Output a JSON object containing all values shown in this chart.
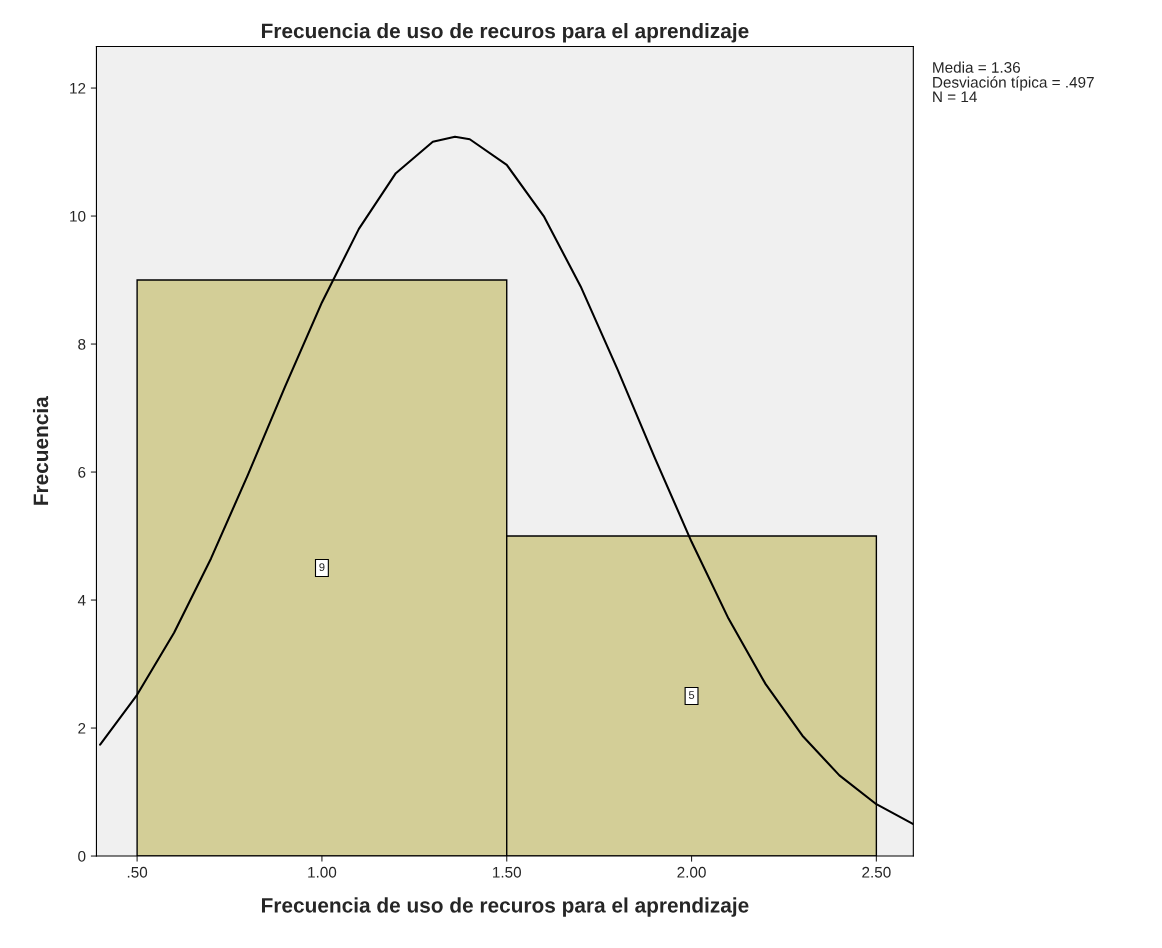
{
  "chart_data": {
    "type": "histogram",
    "title": "Frecuencia de uso de recuros para el aprendizaje",
    "xlabel": "Frecuencia de uso de recuros para el aprendizaje",
    "ylabel": "Frecuencia",
    "bins": [
      0.5,
      1.5,
      2.5
    ],
    "series": [
      {
        "color": "#d3ce97",
        "values": [
          9,
          5
        ],
        "value_labels": [
          "9",
          "5"
        ]
      },
      {
        "type": "line",
        "color": "#000000",
        "x": [
          0.4,
          0.5,
          0.6,
          0.7,
          0.8,
          0.9,
          1.0,
          1.1,
          1.2,
          1.3,
          1.36,
          1.4,
          1.5,
          1.6,
          1.7,
          1.8,
          1.9,
          2.0,
          2.1,
          2.2,
          2.3,
          2.4,
          2.5,
          2.6
        ],
        "values": [
          1.74,
          2.52,
          3.49,
          4.65,
          5.96,
          7.33,
          8.65,
          9.8,
          10.67,
          11.16,
          11.24,
          11.2,
          10.8,
          10.0,
          8.9,
          7.6,
          6.23,
          4.91,
          3.71,
          2.69,
          1.88,
          1.26,
          0.81,
          0.5
        ]
      }
    ],
    "xlim": [
      0.39,
      2.6
    ],
    "ylim": [
      0,
      12.65
    ],
    "xticks": [
      {
        "value": 0.5,
        "label": ".50"
      },
      {
        "value": 1.0,
        "label": "1.00"
      },
      {
        "value": 1.5,
        "label": "1.50"
      },
      {
        "value": 2.0,
        "label": "2.00"
      },
      {
        "value": 2.5,
        "label": "2.50"
      }
    ],
    "yticks": [
      0,
      2,
      4,
      6,
      8,
      10,
      12
    ],
    "grid": false,
    "annotations": [
      "Media = 1.36",
      "Desviación típica = .497",
      "N = 14"
    ]
  }
}
